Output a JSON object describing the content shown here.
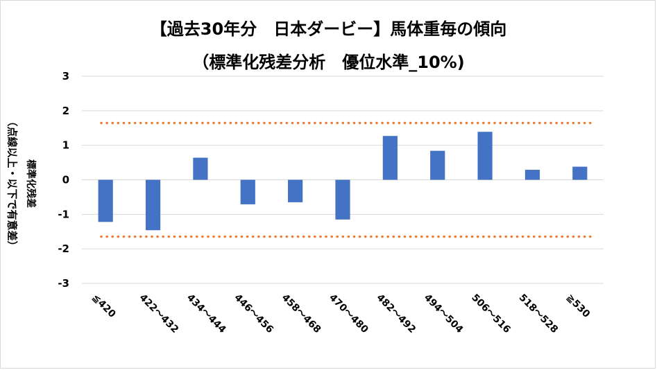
{
  "chart_data": {
    "type": "bar",
    "title": "【過去30年分　日本ダービー】馬体重毎の傾向",
    "subtitle": "（標準化残差分析　優位水準_10%)",
    "ylabel": "標準化残差",
    "ylabel_note": "（点線以上・以下で有意差）",
    "xlabel": "",
    "categories": [
      "≦420",
      "422～432",
      "434～444",
      "446～456",
      "458～468",
      "470～480",
      "482～492",
      "494～504",
      "506～516",
      "518～528",
      "≧530"
    ],
    "values": [
      -1.22,
      -1.46,
      0.64,
      -0.71,
      -0.65,
      -1.15,
      1.27,
      0.84,
      1.39,
      0.29,
      0.38
    ],
    "ylim": [
      -3,
      3
    ],
    "yticks": [
      "3",
      "2",
      "1",
      "0",
      "-1",
      "-2",
      "-3"
    ],
    "threshold_lines": [
      1.645,
      -1.645
    ],
    "grid": true,
    "legend": "none",
    "colors": {
      "bar": "#4472c4",
      "threshold": "#ed7d31",
      "grid": "#d9d9d9"
    }
  }
}
